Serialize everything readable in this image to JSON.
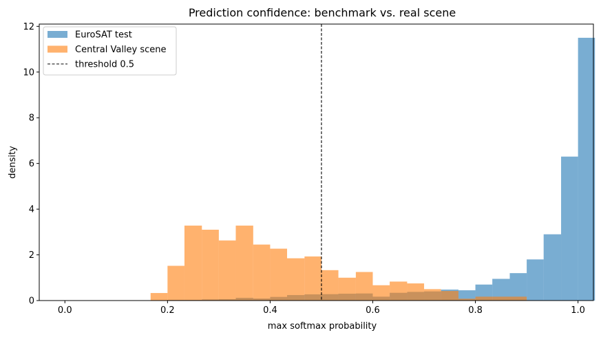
{
  "chart_data": {
    "type": "histogram",
    "title": "Prediction confidence: benchmark vs. real scene",
    "xlabel": "max softmax probability",
    "ylabel": "density",
    "xlim": [
      -0.05,
      1.03
    ],
    "ylim": [
      0,
      12.1
    ],
    "xticks": [
      "0.0",
      "0.2",
      "0.4",
      "0.6",
      "0.8",
      "1.0"
    ],
    "xtick_values": [
      0.0,
      0.2,
      0.4,
      0.6,
      0.8,
      1.0
    ],
    "yticks": [
      "0",
      "2",
      "4",
      "6",
      "8",
      "10",
      "12"
    ],
    "ytick_values": [
      0,
      2,
      4,
      6,
      8,
      10,
      12
    ],
    "legend_position": "top-left",
    "series": [
      {
        "name": "EuroSAT test",
        "color": "#1f77b4",
        "opacity": 0.6,
        "bins": [
          {
            "x0": 0.167,
            "x1": 0.2,
            "y": 0.0
          },
          {
            "x0": 0.2,
            "x1": 0.233,
            "y": 0.03
          },
          {
            "x0": 0.233,
            "x1": 0.267,
            "y": 0.03
          },
          {
            "x0": 0.267,
            "x1": 0.3,
            "y": 0.05
          },
          {
            "x0": 0.3,
            "x1": 0.333,
            "y": 0.06
          },
          {
            "x0": 0.333,
            "x1": 0.367,
            "y": 0.12
          },
          {
            "x0": 0.367,
            "x1": 0.4,
            "y": 0.09
          },
          {
            "x0": 0.4,
            "x1": 0.433,
            "y": 0.16
          },
          {
            "x0": 0.433,
            "x1": 0.467,
            "y": 0.24
          },
          {
            "x0": 0.467,
            "x1": 0.5,
            "y": 0.27
          },
          {
            "x0": 0.5,
            "x1": 0.533,
            "y": 0.28
          },
          {
            "x0": 0.533,
            "x1": 0.567,
            "y": 0.3
          },
          {
            "x0": 0.567,
            "x1": 0.6,
            "y": 0.31
          },
          {
            "x0": 0.6,
            "x1": 0.633,
            "y": 0.17
          },
          {
            "x0": 0.633,
            "x1": 0.667,
            "y": 0.34
          },
          {
            "x0": 0.667,
            "x1": 0.7,
            "y": 0.38
          },
          {
            "x0": 0.7,
            "x1": 0.733,
            "y": 0.4
          },
          {
            "x0": 0.733,
            "x1": 0.767,
            "y": 0.48
          },
          {
            "x0": 0.767,
            "x1": 0.8,
            "y": 0.45
          },
          {
            "x0": 0.8,
            "x1": 0.833,
            "y": 0.7
          },
          {
            "x0": 0.833,
            "x1": 0.867,
            "y": 0.95
          },
          {
            "x0": 0.867,
            "x1": 0.9,
            "y": 1.2
          },
          {
            "x0": 0.9,
            "x1": 0.933,
            "y": 1.8
          },
          {
            "x0": 0.933,
            "x1": 0.967,
            "y": 2.9
          },
          {
            "x0": 0.967,
            "x1": 1.0,
            "y": 6.3
          },
          {
            "x0": 1.0,
            "x1": 1.033,
            "y": 11.5
          }
        ]
      },
      {
        "name": "Central Valley scene",
        "color": "#ff7f0e",
        "opacity": 0.6,
        "bins": [
          {
            "x0": 0.167,
            "x1": 0.2,
            "y": 0.33
          },
          {
            "x0": 0.2,
            "x1": 0.233,
            "y": 1.52
          },
          {
            "x0": 0.233,
            "x1": 0.267,
            "y": 3.28
          },
          {
            "x0": 0.267,
            "x1": 0.3,
            "y": 3.1
          },
          {
            "x0": 0.3,
            "x1": 0.333,
            "y": 2.63
          },
          {
            "x0": 0.333,
            "x1": 0.367,
            "y": 3.28
          },
          {
            "x0": 0.367,
            "x1": 0.4,
            "y": 2.45
          },
          {
            "x0": 0.4,
            "x1": 0.433,
            "y": 2.27
          },
          {
            "x0": 0.433,
            "x1": 0.467,
            "y": 1.85
          },
          {
            "x0": 0.467,
            "x1": 0.5,
            "y": 1.93
          },
          {
            "x0": 0.5,
            "x1": 0.533,
            "y": 1.33
          },
          {
            "x0": 0.533,
            "x1": 0.567,
            "y": 1.0
          },
          {
            "x0": 0.567,
            "x1": 0.6,
            "y": 1.25
          },
          {
            "x0": 0.6,
            "x1": 0.633,
            "y": 0.67
          },
          {
            "x0": 0.633,
            "x1": 0.667,
            "y": 0.83
          },
          {
            "x0": 0.667,
            "x1": 0.7,
            "y": 0.75
          },
          {
            "x0": 0.7,
            "x1": 0.733,
            "y": 0.5
          },
          {
            "x0": 0.733,
            "x1": 0.767,
            "y": 0.42
          },
          {
            "x0": 0.767,
            "x1": 0.8,
            "y": 0.08
          },
          {
            "x0": 0.8,
            "x1": 0.833,
            "y": 0.17
          },
          {
            "x0": 0.833,
            "x1": 0.867,
            "y": 0.17
          },
          {
            "x0": 0.867,
            "x1": 0.9,
            "y": 0.17
          }
        ]
      }
    ],
    "threshold": {
      "name": "threshold 0.5",
      "x": 0.5,
      "color": "#000000",
      "style": "dashed"
    }
  }
}
